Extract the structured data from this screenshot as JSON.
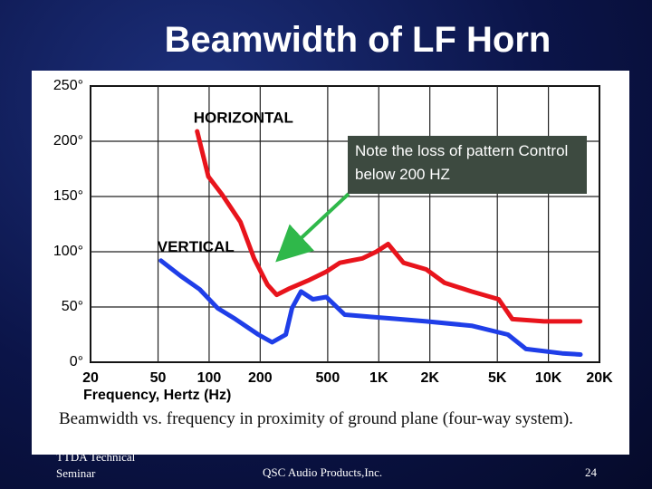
{
  "title": "Beamwidth of LF Horn",
  "chart_data": {
    "type": "line",
    "x_label": "Frequency, Hertz (Hz)",
    "caption": "Beamwidth vs. frequency in proximity of ground plane (four-way system).",
    "annotation": "Note the loss of pattern Control below 200 HZ",
    "x_scale": "log",
    "xlim": [
      20,
      20000
    ],
    "ylim": [
      0,
      250
    ],
    "xticks": [
      20,
      50,
      100,
      200,
      500,
      {
        "value": 1000,
        "label": "1K"
      },
      {
        "value": 2000,
        "label": "2K"
      },
      {
        "value": 5000,
        "label": "5K"
      },
      {
        "value": 10000,
        "label": "10K"
      },
      {
        "value": 20000,
        "label": "20K"
      }
    ],
    "yticks": [
      {
        "value": 0,
        "label": "0°"
      },
      {
        "value": 50,
        "label": "50°"
      },
      {
        "value": 100,
        "label": "100°"
      },
      {
        "value": 150,
        "label": "150°"
      },
      {
        "value": 200,
        "label": "200°"
      },
      {
        "value": 250,
        "label": "250°"
      }
    ],
    "grid": true,
    "series": [
      {
        "name": "HORIZONTAL",
        "color": "#e8141c",
        "x": [
          85,
          99,
          119,
          153,
          184,
          221,
          250,
          300,
          384,
          491,
          590,
          803,
          966,
          1135,
          1400,
          1905,
          2436,
          3525,
          5095,
          6130,
          9440,
          15400
        ],
        "values": [
          209,
          168,
          152,
          127,
          94,
          70,
          61,
          67,
          74,
          82,
          90,
          94,
          100,
          107,
          90,
          84,
          72,
          64,
          57,
          39,
          37,
          37
        ]
      },
      {
        "name": "VERTICAL",
        "color": "#1f3ee8",
        "x": [
          52,
          68,
          88,
          112,
          143,
          195,
          235,
          283,
          308,
          348,
          409,
          491,
          629,
          910,
          1316,
          1905,
          3525,
          5770,
          7380,
          12060,
          15450
        ],
        "values": [
          92,
          78,
          66,
          49,
          39,
          25,
          18,
          25,
          49,
          64,
          57,
          59,
          43,
          41,
          39,
          37,
          33,
          25,
          12,
          8,
          7
        ]
      }
    ]
  },
  "footer": {
    "left": "TTDA Technical Seminar",
    "center": "QSC Audio Products,Inc.",
    "page": "24"
  }
}
